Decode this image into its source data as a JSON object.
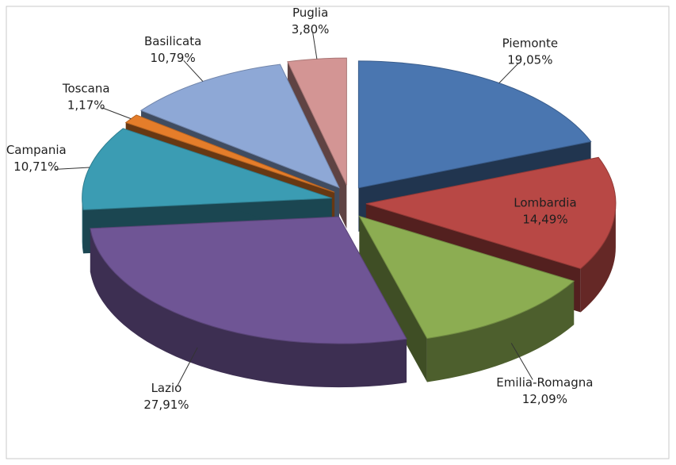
{
  "chart_data": {
    "type": "pie3d",
    "categories": [
      "Piemonte",
      "Lombardia",
      "Emilia-Romagna",
      "Lazio",
      "Campania",
      "Toscana",
      "Basilicata",
      "Puglia"
    ],
    "values": [
      19.05,
      14.49,
      12.09,
      27.91,
      10.71,
      1.17,
      10.79,
      3.8
    ],
    "value_labels": [
      "19,05%",
      "14,49%",
      "12,09%",
      "27,91%",
      "10,71%",
      "1,17%",
      "10,79%",
      "3,80%"
    ],
    "colors": [
      "#4a76b0",
      "#b84845",
      "#8cad52",
      "#6f5595",
      "#3b9cb3",
      "#e57d2a",
      "#8ea8d6",
      "#d39594"
    ]
  }
}
